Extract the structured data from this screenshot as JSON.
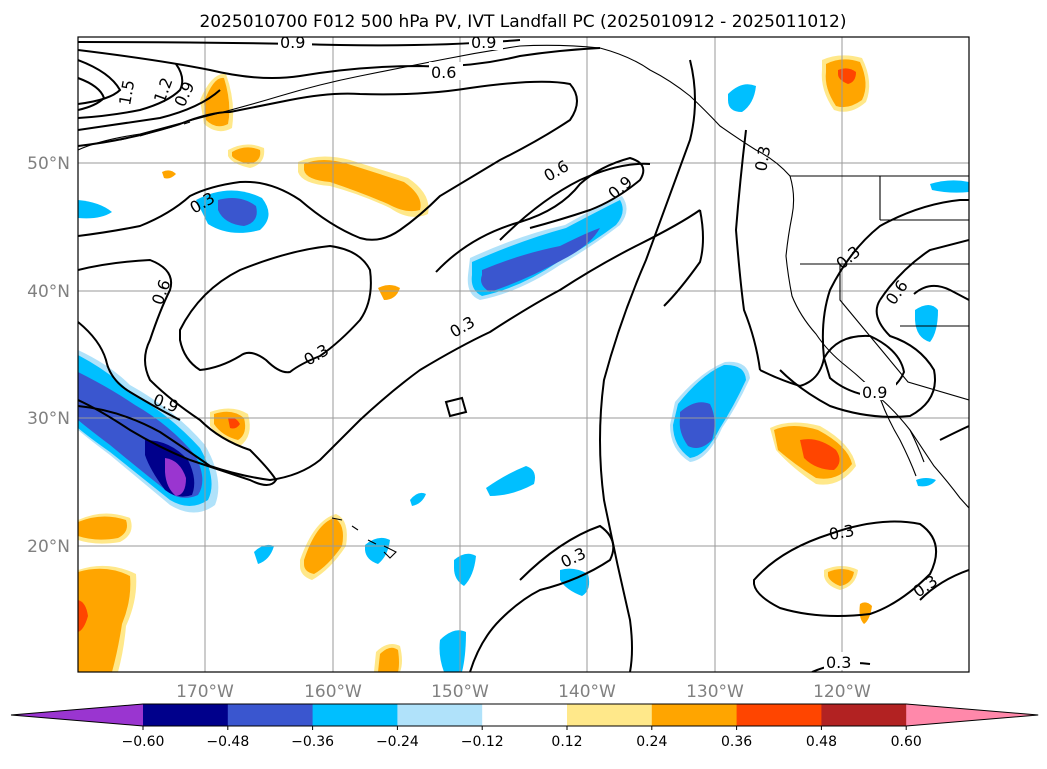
{
  "title": "2025010700 F012 500 hPa PV, IVT Landfall PC (2025010912 - 2025011012)",
  "lat_labels": [
    "50°N",
    "40°N",
    "30°N",
    "20°N"
  ],
  "lon_labels": [
    "170°W",
    "160°W",
    "150°W",
    "140°W",
    "130°W",
    "120°W"
  ],
  "colorbar": {
    "ticks": [
      "−0.60",
      "−0.48",
      "−0.36",
      "−0.24",
      "−0.12",
      "0.12",
      "0.24",
      "0.36",
      "0.48",
      "0.60"
    ],
    "colors": [
      "#9a35d0",
      "#00008b",
      "#3a56cf",
      "#00bfff",
      "#b0e2fa",
      "#ffffff",
      "#ffe88a",
      "#ffa500",
      "#ff4500",
      "#b22222",
      "#ff88aa"
    ]
  },
  "contour_labels": [
    "0.9",
    "0.9",
    "0.6",
    "1.5",
    "1.2",
    "0.9",
    "0.3",
    "0.6",
    "0.9",
    "0.3",
    "0.6",
    "0.3",
    "0.3",
    "0.6",
    "0.3",
    "0.9",
    "0.9",
    "0.3",
    "0.3",
    "0.3",
    "0.3"
  ]
}
